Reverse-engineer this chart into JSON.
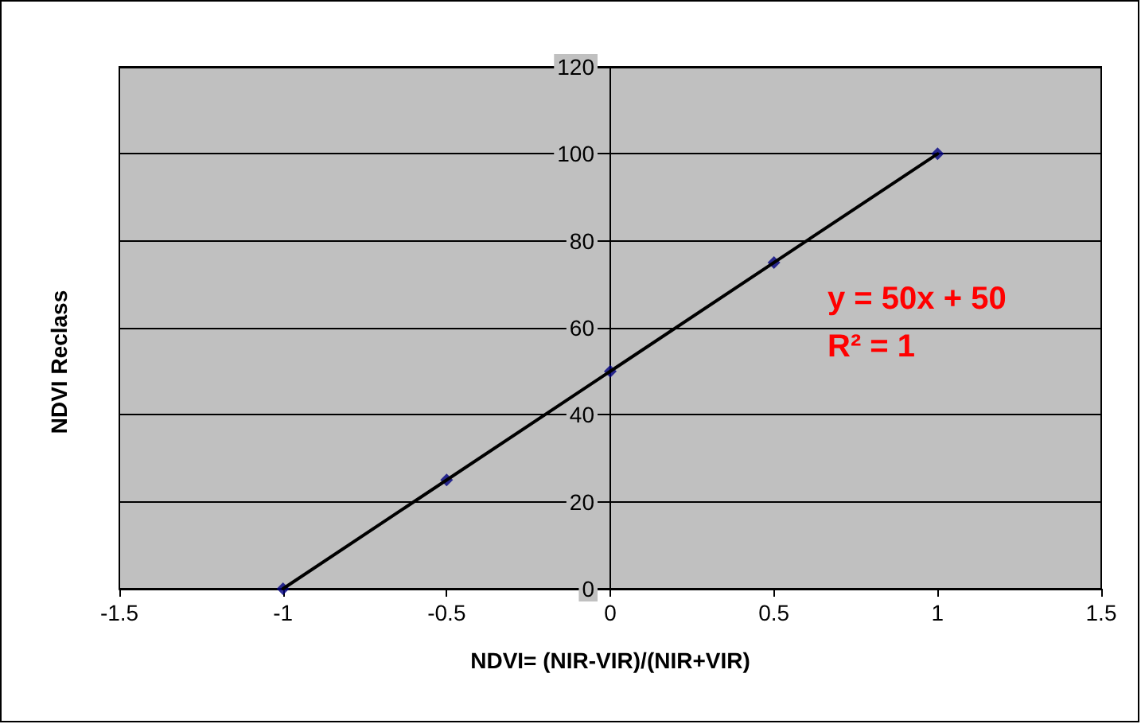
{
  "chart_data": {
    "type": "scatter",
    "xlabel": "NDVI= (NIR-VIR)/(NIR+VIR)",
    "ylabel": "NDVI Reclass",
    "x": [
      -1,
      -0.5,
      0,
      0.5,
      1
    ],
    "series": [
      {
        "color": "#000080",
        "values": [
          0,
          25,
          50,
          75,
          100
        ],
        "marker": "diamond"
      },
      {
        "type": "line",
        "x": [
          -1,
          1
        ],
        "values": [
          0,
          100
        ],
        "color": "#000000",
        "marker": "none"
      }
    ],
    "xlim": [
      -1.5,
      1.5
    ],
    "xticks": [
      -1.5,
      -1,
      -0.5,
      0,
      0.5,
      1,
      1.5
    ],
    "ylim": [
      0,
      120
    ],
    "yticks": [
      0,
      20,
      40,
      60,
      80,
      100,
      120
    ],
    "grid": "y",
    "line_style": "solid",
    "annotations": [
      "y = 50x + 50",
      "R² = 1"
    ]
  }
}
